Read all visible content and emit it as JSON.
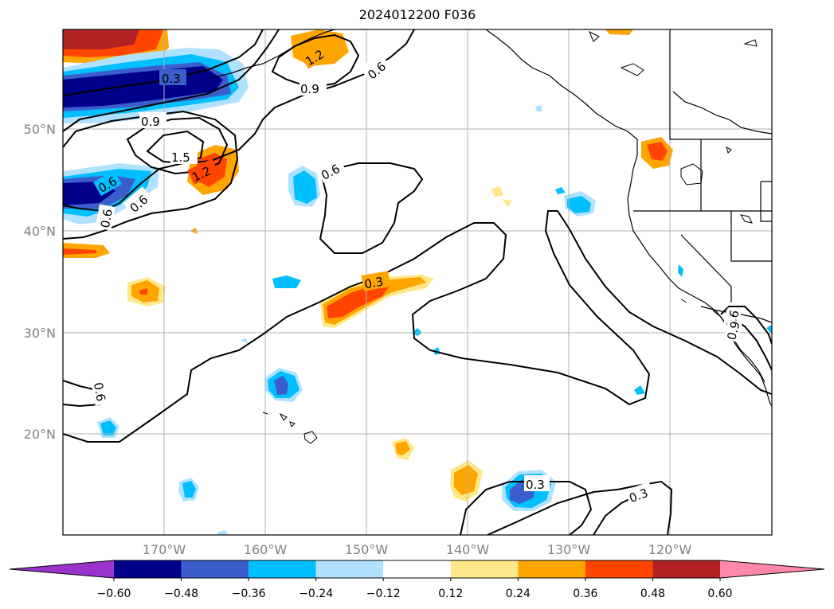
{
  "title": "2024012200 F036",
  "map": {
    "lat_labels": [
      "50°N",
      "40°N",
      "30°N",
      "20°N"
    ],
    "lon_labels": [
      "170°W",
      "160°W",
      "150°W",
      "140°W",
      "130°W",
      "120°W"
    ],
    "gridline_color": "#b0b0b0",
    "coastline_color": "#000000"
  },
  "contours": {
    "color": "#000000",
    "labels": [
      "0.3",
      "0.9",
      "0.6",
      "0.9",
      "1.5",
      "1.2",
      "0.6",
      "0.6",
      "0.6",
      "0.6",
      "0.3",
      "0.6",
      "0.9",
      "0.6",
      "0.3",
      "0.3",
      "1.2"
    ]
  },
  "colorbar": {
    "levels": [
      "-0.60",
      "-0.48",
      "-0.36",
      "-0.24",
      "-0.12",
      "0.12",
      "0.24",
      "0.36",
      "0.48",
      "0.60"
    ],
    "colors": [
      "#9933cc",
      "#00008b",
      "#3a5fcd",
      "#00bfff",
      "#b0e2ff",
      "#ffffff",
      "#ffe88a",
      "#ffa500",
      "#ff4500",
      "#b22222",
      "#ff88aa"
    ]
  }
}
